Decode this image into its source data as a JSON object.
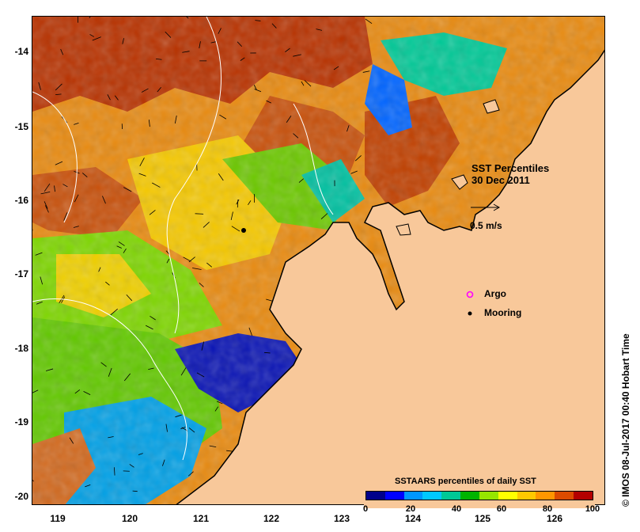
{
  "title": "SST Percentiles",
  "date": "30 Dec 2011",
  "vector_scale_label": "0.5 m/s",
  "legend_items": [
    {
      "label": "Argo",
      "color": "#ff00ff",
      "icon": "argo-circle-icon"
    },
    {
      "label": "Mooring",
      "color": "#000000",
      "icon": "mooring-dot-icon"
    }
  ],
  "colorbar": {
    "title": "SSTAARS percentiles of daily SST",
    "colors": [
      "#00008b",
      "#0000ff",
      "#0096ff",
      "#00c8ff",
      "#00c896",
      "#00b400",
      "#96e600",
      "#ffff00",
      "#ffc800",
      "#ff9600",
      "#dc4b00",
      "#b40000"
    ],
    "tick_labels": [
      "0",
      "20",
      "40",
      "60",
      "80",
      "100"
    ]
  },
  "axes": {
    "y_ticks": [
      "-14",
      "-15",
      "-16",
      "-17",
      "-18",
      "-19",
      "-20"
    ],
    "x_ticks": [
      "119",
      "120",
      "121",
      "122",
      "123",
      "124",
      "125",
      "126"
    ]
  },
  "credit": "© IMOS 08-Jul-2017 00:40 Hobart Time",
  "colors": {
    "land": "#f8c89a",
    "sea_warm": "#d2691e",
    "sea_dark_red": "#a00000",
    "sea_orange": "#ff9600",
    "sea_yellow": "#ffd400",
    "sea_green": "#96e600",
    "sea_teal": "#00c896",
    "sea_blue": "#0064ff",
    "sea_navy": "#00008b"
  }
}
